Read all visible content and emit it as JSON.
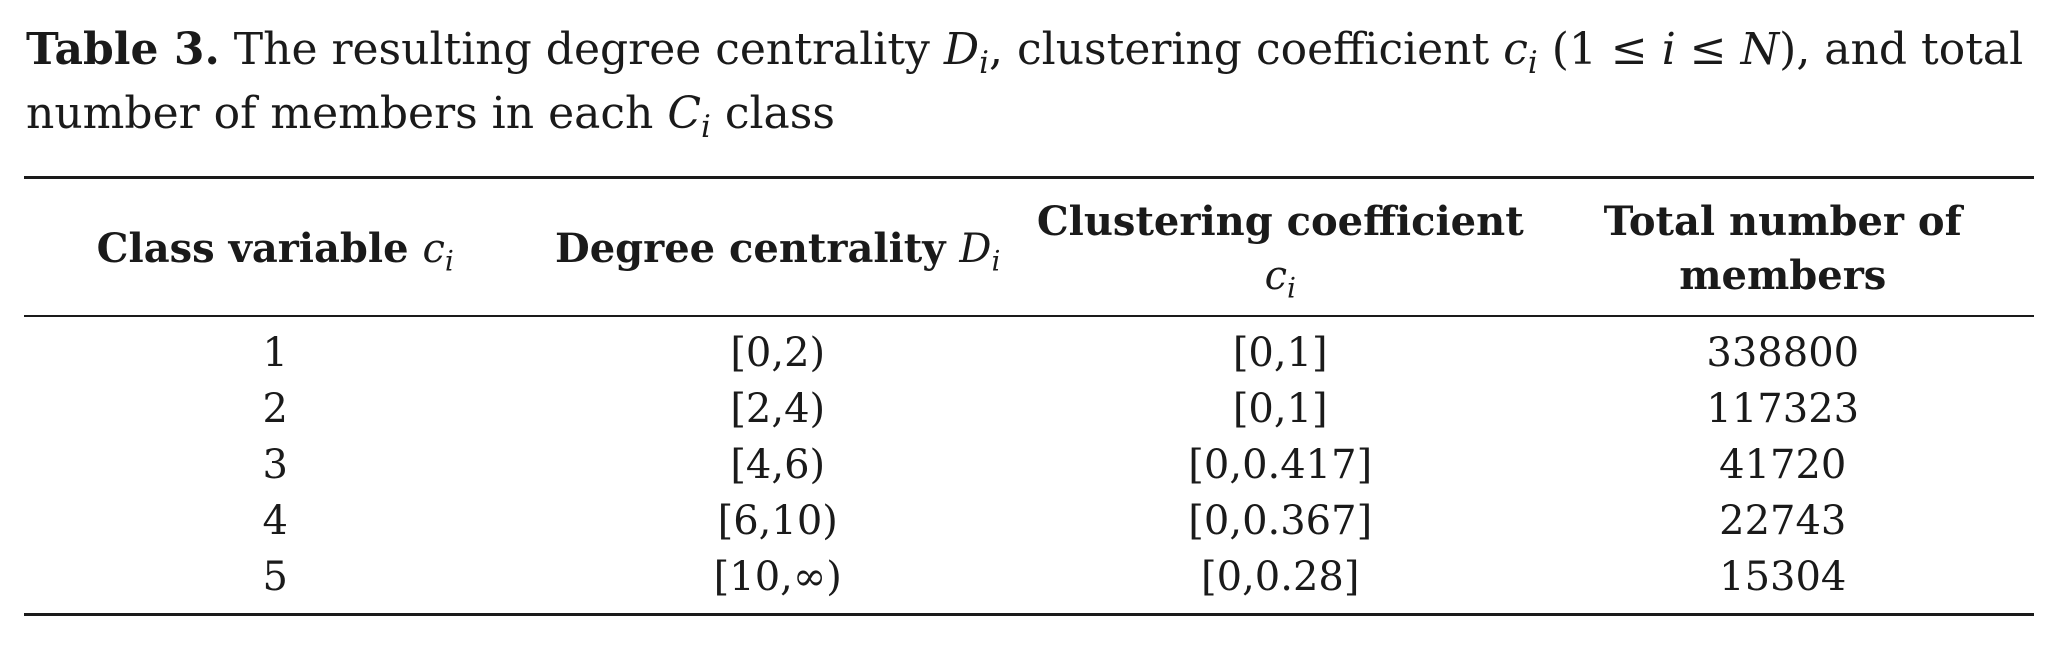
{
  "caption": {
    "label": "Table 3.",
    "text_1": " The resulting degree centrality ",
    "var_D": "D",
    "sub_i": "i",
    "text_2": ", clustering coefficient ",
    "var_c": "c",
    "text_3": " (1 ≤ ",
    "var_i": "i",
    "text_4": " ≤ ",
    "var_N": "N",
    "text_5": "), and total number of members in each ",
    "var_C": "C",
    "text_6": " class"
  },
  "table": {
    "headers": {
      "class_variable": "Class variable",
      "class_variable_var": "c",
      "degree_centrality": "Degree centrality",
      "degree_centrality_var": "D",
      "clustering_coefficient": "Clustering coefficient",
      "clustering_coefficient_var": "c",
      "total_members_line1": "Total number of",
      "total_members_line2": "members",
      "subscript": "i"
    },
    "rows": [
      {
        "class": "1",
        "degree": "[0,2)",
        "clustering": "[0,1]",
        "members": "338800"
      },
      {
        "class": "2",
        "degree": "[2,4)",
        "clustering": "[0,1]",
        "members": "117323"
      },
      {
        "class": "3",
        "degree": "[4,6)",
        "clustering": "[0,0.417]",
        "members": "41720"
      },
      {
        "class": "4",
        "degree": "[6,10)",
        "clustering": "[0,0.367]",
        "members": "22743"
      },
      {
        "class": "5",
        "degree": "[10,∞)",
        "clustering": "[0,0.28]",
        "members": "15304"
      }
    ]
  }
}
